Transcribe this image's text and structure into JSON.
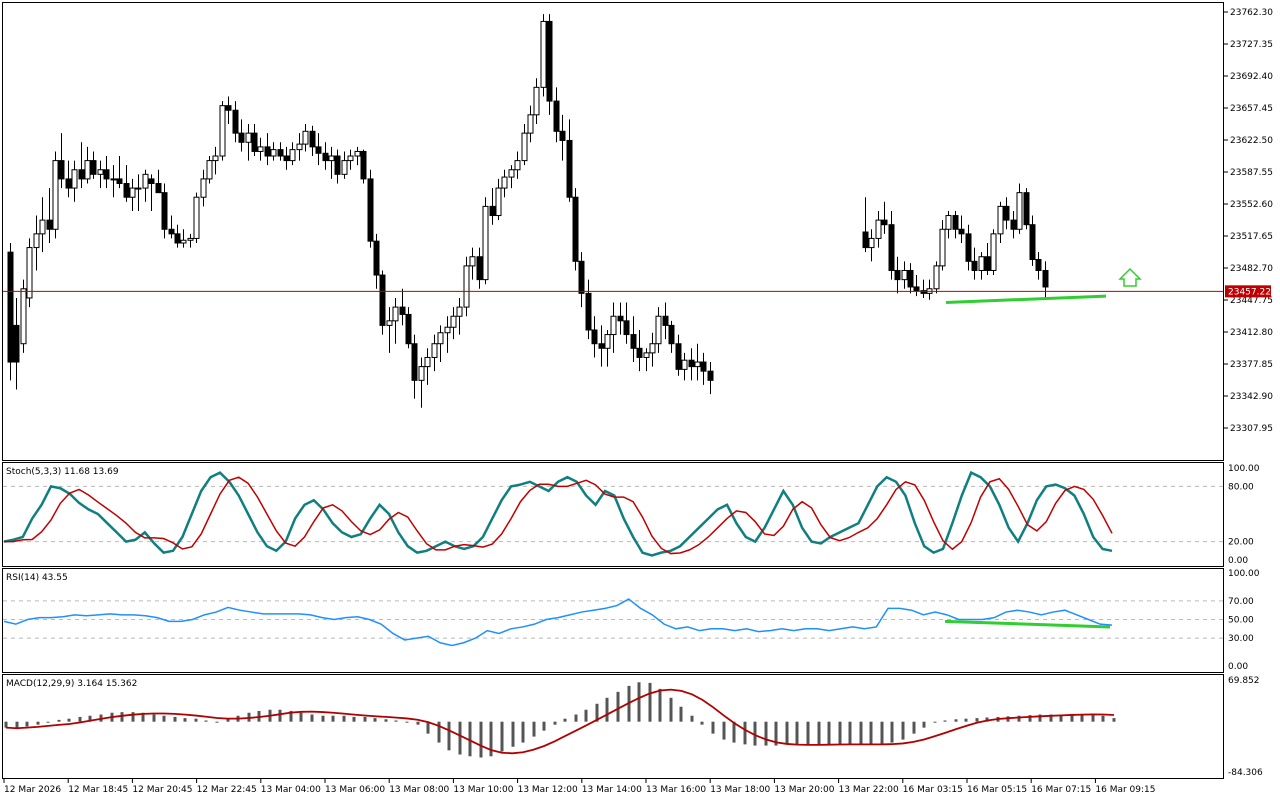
{
  "chart_data": {
    "type": "candlestick",
    "symbol_price_label": "23457.22",
    "current_price": 23457.22,
    "price_axis_ticks": [
      "23762.30",
      "23727.35",
      "23692.40",
      "23657.45",
      "23622.50",
      "23587.55",
      "23552.60",
      "23517.65",
      "23482.70",
      "23447.75",
      "23412.80",
      "23377.85",
      "23342.90",
      "23307.95"
    ],
    "price_axis_values": [
      23762.3,
      23727.35,
      23692.4,
      23657.45,
      23622.5,
      23587.55,
      23552.6,
      23517.65,
      23482.7,
      23447.75,
      23412.8,
      23377.85,
      23342.9,
      23307.95
    ],
    "time_axis_labels": [
      "12 Mar 2026",
      "12 Mar 18:45",
      "12 Mar 20:45",
      "12 Mar 22:45",
      "13 Mar 04:00",
      "13 Mar 06:00",
      "13 Mar 08:00",
      "13 Mar 10:00",
      "13 Mar 12:00",
      "13 Mar 14:00",
      "13 Mar 16:00",
      "13 Mar 18:00",
      "13 Mar 20:00",
      "13 Mar 22:00",
      "16 Mar 03:15",
      "16 Mar 05:15",
      "16 Mar 07:15",
      "16 Mar 09:15"
    ],
    "candles_segment1": [
      [
        23500,
        23510,
        23360,
        23380
      ],
      [
        23420,
        23450,
        23350,
        23380
      ],
      [
        23400,
        23470,
        23390,
        23460
      ],
      [
        23450,
        23515,
        23440,
        23505
      ],
      [
        23505,
        23540,
        23480,
        23520
      ],
      [
        23520,
        23560,
        23500,
        23535
      ],
      [
        23535,
        23570,
        23510,
        23525
      ],
      [
        23525,
        23610,
        23515,
        23600
      ],
      [
        23600,
        23630,
        23570,
        23580
      ],
      [
        23580,
        23600,
        23560,
        23570
      ],
      [
        23570,
        23600,
        23555,
        23590
      ],
      [
        23590,
        23620,
        23570,
        23580
      ],
      [
        23580,
        23615,
        23575,
        23600
      ],
      [
        23600,
        23610,
        23580,
        23585
      ],
      [
        23585,
        23600,
        23570,
        23590
      ],
      [
        23590,
        23605,
        23570,
        23580
      ],
      [
        23580,
        23595,
        23560,
        23580
      ],
      [
        23580,
        23605,
        23570,
        23575
      ],
      [
        23575,
        23595,
        23555,
        23560
      ],
      [
        23560,
        23580,
        23545,
        23570
      ],
      [
        23570,
        23585,
        23545,
        23570
      ],
      [
        23570,
        23590,
        23555,
        23585
      ],
      [
        23580,
        23585,
        23545,
        23575
      ],
      [
        23575,
        23590,
        23565,
        23565
      ],
      [
        23565,
        23575,
        23515,
        23525
      ],
      [
        23525,
        23540,
        23515,
        23520
      ],
      [
        23520,
        23530,
        23505,
        23510
      ],
      [
        23510,
        23525,
        23505,
        23513
      ],
      [
        23513,
        23520,
        23505,
        23515
      ],
      [
        23515,
        23565,
        23510,
        23560
      ],
      [
        23560,
        23590,
        23550,
        23580
      ],
      [
        23580,
        23605,
        23575,
        23600
      ],
      [
        23600,
        23615,
        23585,
        23605
      ],
      [
        23605,
        23665,
        23600,
        23660
      ],
      [
        23660,
        23670,
        23640,
        23655
      ],
      [
        23655,
        23665,
        23620,
        23630
      ],
      [
        23630,
        23645,
        23610,
        23620
      ],
      [
        23620,
        23640,
        23600,
        23630
      ],
      [
        23630,
        23640,
        23605,
        23610
      ],
      [
        23610,
        23625,
        23600,
        23615
      ],
      [
        23615,
        23630,
        23595,
        23605
      ],
      [
        23605,
        23620,
        23600,
        23612
      ],
      [
        23612,
        23620,
        23600,
        23605
      ],
      [
        23605,
        23615,
        23590,
        23600
      ],
      [
        23600,
        23620,
        23595,
        23612
      ],
      [
        23612,
        23630,
        23600,
        23618
      ],
      [
        23618,
        23640,
        23610,
        23632
      ],
      [
        23632,
        23638,
        23605,
        23615
      ],
      [
        23615,
        23630,
        23595,
        23608
      ],
      [
        23608,
        23620,
        23590,
        23600
      ],
      [
        23600,
        23615,
        23580,
        23605
      ],
      [
        23605,
        23612,
        23575,
        23585
      ],
      [
        23585,
        23610,
        23580,
        23600
      ],
      [
        23600,
        23612,
        23590,
        23605
      ],
      [
        23605,
        23615,
        23595,
        23610
      ],
      [
        23610,
        23612,
        23575,
        23580
      ],
      [
        23580,
        23590,
        23505,
        23512
      ],
      [
        23512,
        23520,
        23460,
        23475
      ],
      [
        23475,
        23480,
        23410,
        23420
      ],
      [
        23420,
        23440,
        23390,
        23425
      ],
      [
        23425,
        23450,
        23400,
        23440
      ],
      [
        23440,
        23460,
        23420,
        23432
      ],
      [
        23432,
        23440,
        23395,
        23400
      ],
      [
        23400,
        23410,
        23340,
        23360
      ],
      [
        23360,
        23385,
        23330,
        23375
      ],
      [
        23375,
        23395,
        23355,
        23385
      ],
      [
        23385,
        23410,
        23370,
        23400
      ],
      [
        23400,
        23420,
        23380,
        23412
      ],
      [
        23412,
        23430,
        23390,
        23418
      ],
      [
        23418,
        23440,
        23405,
        23430
      ],
      [
        23430,
        23450,
        23410,
        23440
      ],
      [
        23440,
        23495,
        23430,
        23485
      ],
      [
        23485,
        23505,
        23470,
        23495
      ],
      [
        23495,
        23505,
        23460,
        23470
      ],
      [
        23470,
        23560,
        23465,
        23550
      ],
      [
        23550,
        23570,
        23530,
        23540
      ],
      [
        23540,
        23580,
        23535,
        23570
      ],
      [
        23570,
        23590,
        23560,
        23582
      ],
      [
        23582,
        23595,
        23570,
        23590
      ],
      [
        23590,
        23610,
        23580,
        23600
      ],
      [
        23600,
        23640,
        23595,
        23630
      ],
      [
        23630,
        23660,
        23620,
        23650
      ],
      [
        23650,
        23690,
        23640,
        23680
      ],
      [
        23680,
        23760,
        23670,
        23752
      ],
      [
        23752,
        23760,
        23650,
        23665
      ],
      [
        23665,
        23680,
        23620,
        23632
      ],
      [
        23632,
        23650,
        23600,
        23622
      ],
      [
        23622,
        23645,
        23555,
        23560
      ],
      [
        23560,
        23570,
        23480,
        23490
      ],
      [
        23490,
        23500,
        23440,
        23455
      ],
      [
        23455,
        23470,
        23405,
        23415
      ],
      [
        23415,
        23430,
        23385,
        23400
      ],
      [
        23400,
        23420,
        23375,
        23395
      ],
      [
        23395,
        23415,
        23375,
        23410
      ],
      [
        23410,
        23445,
        23390,
        23430
      ],
      [
        23430,
        23445,
        23410,
        23425
      ],
      [
        23425,
        23445,
        23400,
        23410
      ],
      [
        23410,
        23430,
        23380,
        23395
      ],
      [
        23395,
        23415,
        23370,
        23385
      ],
      [
        23385,
        23395,
        23370,
        23390
      ],
      [
        23390,
        23412,
        23375,
        23400
      ],
      [
        23400,
        23440,
        23390,
        23430
      ],
      [
        23430,
        23445,
        23405,
        23420
      ],
      [
        23420,
        23425,
        23390,
        23400
      ],
      [
        23400,
        23410,
        23365,
        23372
      ],
      [
        23372,
        23390,
        23360,
        23382
      ],
      [
        23382,
        23395,
        23360,
        23375
      ],
      [
        23375,
        23400,
        23360,
        23380
      ],
      [
        23380,
        23390,
        23355,
        23370
      ],
      [
        23370,
        23380,
        23345,
        23360
      ]
    ],
    "candles_segment2": [
      [
        23522,
        23560,
        23500,
        23505
      ],
      [
        23505,
        23525,
        23490,
        23515
      ],
      [
        23515,
        23545,
        23505,
        23535
      ],
      [
        23535,
        23555,
        23520,
        23530
      ],
      [
        23530,
        23545,
        23470,
        23480
      ],
      [
        23480,
        23495,
        23455,
        23470
      ],
      [
        23470,
        23490,
        23460,
        23480
      ],
      [
        23480,
        23488,
        23455,
        23462
      ],
      [
        23462,
        23475,
        23452,
        23458
      ],
      [
        23458,
        23470,
        23450,
        23455
      ],
      [
        23455,
        23470,
        23448,
        23460
      ],
      [
        23460,
        23490,
        23455,
        23485
      ],
      [
        23485,
        23535,
        23480,
        23525
      ],
      [
        23525,
        23545,
        23515,
        23540
      ],
      [
        23540,
        23545,
        23515,
        23525
      ],
      [
        23525,
        23540,
        23510,
        23520
      ],
      [
        23520,
        23530,
        23480,
        23490
      ],
      [
        23490,
        23505,
        23470,
        23480
      ],
      [
        23480,
        23500,
        23470,
        23495
      ],
      [
        23495,
        23510,
        23475,
        23480
      ],
      [
        23480,
        23525,
        23475,
        23520
      ],
      [
        23520,
        23555,
        23510,
        23550
      ],
      [
        23550,
        23560,
        23525,
        23535
      ],
      [
        23535,
        23545,
        23515,
        23525
      ],
      [
        23525,
        23575,
        23520,
        23565
      ],
      [
        23565,
        23570,
        23525,
        23530
      ],
      [
        23530,
        23540,
        23485,
        23492
      ],
      [
        23492,
        23500,
        23470,
        23480
      ],
      [
        23480,
        23490,
        23450,
        23462
      ]
    ],
    "support_line": {
      "from_price": 23445,
      "to_price": 23452
    },
    "stoch": {
      "label": "Stoch(5,3,3) 11.68 13.69",
      "main": 11.68,
      "signal": 13.69,
      "ticks": [
        "100.00",
        "80.00",
        "20.00",
        "0.00"
      ],
      "levels": [
        80,
        20
      ]
    },
    "rsi": {
      "label": "RSI(14) 43.55",
      "value": 43.55,
      "ticks": [
        "100.00",
        "70.00",
        "50.00",
        "30.00",
        "0.00"
      ],
      "levels": [
        70,
        50,
        30
      ]
    },
    "macd": {
      "label": "MACD(12,29,9) 3.164 15.362",
      "macd": 3.164,
      "signal": 15.362,
      "ticks": [
        "69.852",
        "-84.306"
      ],
      "ylim": [
        -84.306,
        69.852
      ]
    },
    "colors": {
      "bull": "#ffffff",
      "bear": "#000000",
      "stoch_main": "#0f7f7f",
      "stoch_signal": "#c00000",
      "rsi": "#1e90ff",
      "macd_signal": "#b00000",
      "support": "#32cd32",
      "price_line": "#c00000",
      "arrow": "#32cd32"
    }
  }
}
